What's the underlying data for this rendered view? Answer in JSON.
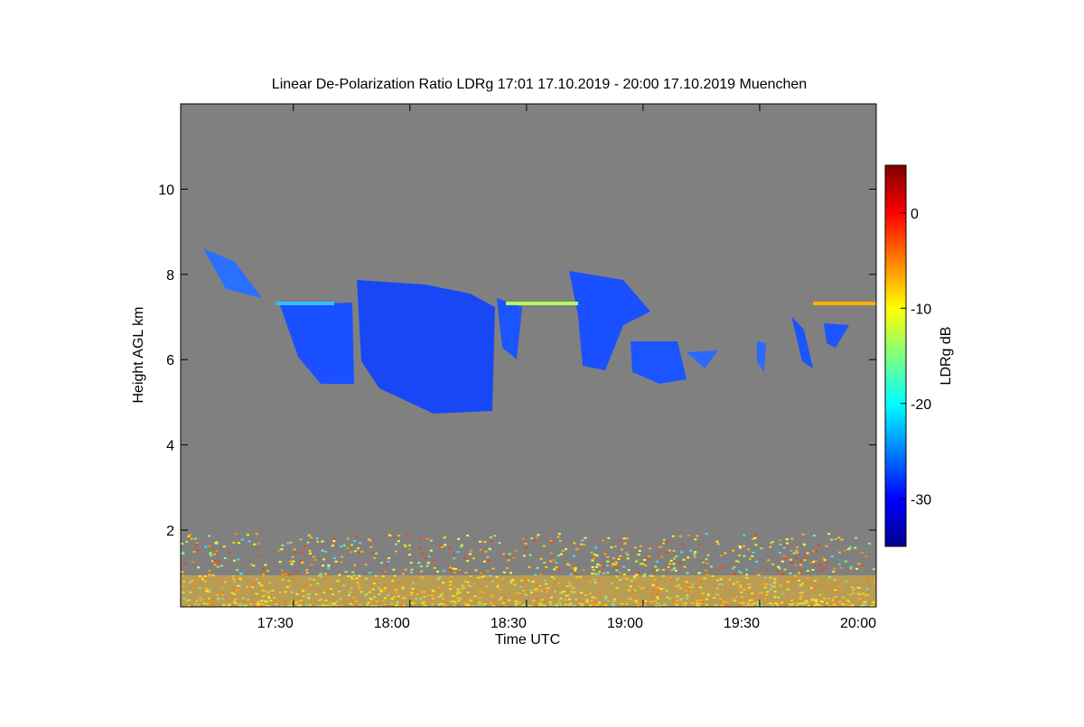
{
  "chart_data": {
    "type": "heatmap",
    "title": "Linear De-Polarization Ratio LDRg   17:01 17.10.2019 - 20:00 17.10.2019 Muenchen",
    "xlabel": "Time UTC",
    "ylabel": "Height AGL km",
    "xlim": [
      1021,
      1200
    ],
    "xticks": [
      {
        "value": 1050,
        "label": "17:30"
      },
      {
        "value": 1080,
        "label": "18:00"
      },
      {
        "value": 1110,
        "label": "18:30"
      },
      {
        "value": 1140,
        "label": "19:00"
      },
      {
        "value": 1170,
        "label": "19:30"
      },
      {
        "value": 1200,
        "label": "20:00"
      }
    ],
    "ylim": [
      0.2,
      12
    ],
    "yticks": [
      2,
      4,
      6,
      8,
      10
    ],
    "colorbar": {
      "label": "LDRg dB",
      "lim": [
        -35,
        5
      ],
      "ticks": [
        0,
        -10,
        -20,
        -30
      ]
    },
    "background": "#808080"
  }
}
